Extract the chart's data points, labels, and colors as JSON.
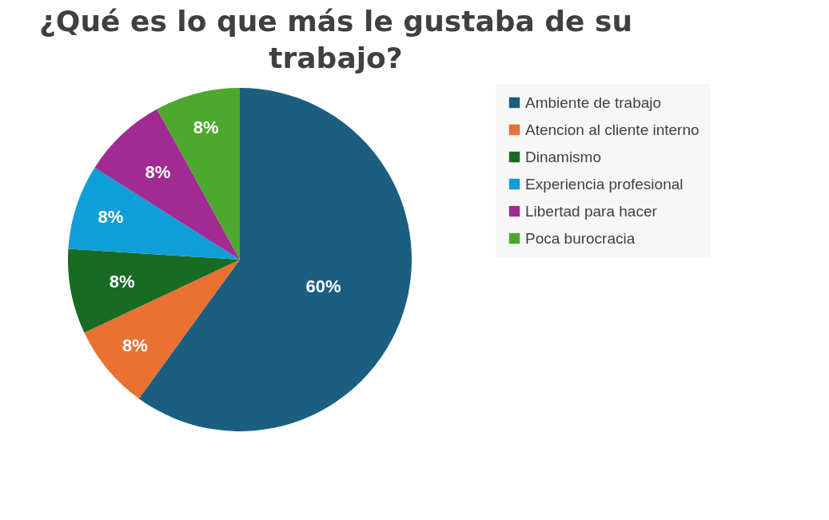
{
  "chart_data": {
    "type": "pie",
    "title": "¿Qué es lo que más le gustaba de su trabajo?",
    "categories": [
      "Ambiente de trabajo",
      "Atencion al cliente interno",
      "Dinamismo",
      "Experiencia profesional",
      "Libertad para hacer",
      "Poca burocracia"
    ],
    "values": [
      60,
      8,
      8,
      8,
      8,
      8
    ],
    "value_labels": [
      "60%",
      "8%",
      "8%",
      "8%",
      "8%",
      "8%"
    ],
    "colors": [
      "#1b5e80",
      "#e97132",
      "#196b24",
      "#0f9ed5",
      "#a02b93",
      "#4ea72e"
    ],
    "legend": "right"
  }
}
